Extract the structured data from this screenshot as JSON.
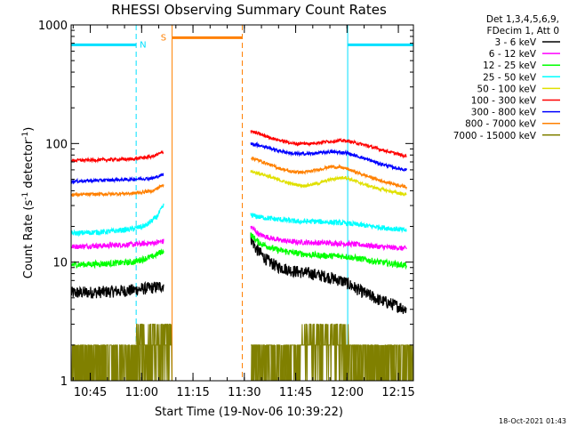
{
  "chart_data": {
    "type": "line",
    "title": "RHESSI Observing Summary Count Rates",
    "xlabel": "Start Time (19-Nov-06 10:39:22)",
    "ylabel_parts": [
      "Count Rate (s",
      "-1",
      " detector",
      "-1",
      ")"
    ],
    "yscale": "log",
    "ylim": [
      1,
      1000
    ],
    "y_ticks": [
      {
        "value": 1,
        "label": "1"
      },
      {
        "value": 10,
        "label": "10"
      },
      {
        "value": 100,
        "label": "100"
      },
      {
        "value": 1000,
        "label": "1000"
      }
    ],
    "xlim_min": [
      0,
      100
    ],
    "x_ticks": [
      {
        "min": 5.6,
        "label": "10:45"
      },
      {
        "min": 20.6,
        "label": "11:00"
      },
      {
        "min": 35.6,
        "label": "11:15"
      },
      {
        "min": 50.6,
        "label": "11:30"
      },
      {
        "min": 65.6,
        "label": "11:45"
      },
      {
        "min": 80.6,
        "label": "12:00"
      },
      {
        "min": 95.6,
        "label": "12:15"
      }
    ],
    "legend_header": [
      "Det 1,3,4,5,6,9,",
      "FDecim 1, Att 0"
    ],
    "timestamp": "18-Oct-2021 01:43",
    "markers": [
      {
        "label": "N",
        "color": "#00e0ff",
        "x_start": 0,
        "x_end": 19,
        "y_value": 680,
        "label_pos": 21
      },
      {
        "label": "S",
        "color": "#ff8000",
        "x_start": 29.5,
        "x_end": 50,
        "y_value": 780,
        "label_pos": 27
      },
      {
        "label": "",
        "color": "#00e0ff",
        "x_start": 80.8,
        "x_end": 100,
        "y_value": 680,
        "label_pos": 0
      }
    ],
    "boundaries": [
      {
        "x": 19,
        "color": "#00e0ff",
        "dashed": true
      },
      {
        "x": 29.5,
        "color": "#ff8000",
        "dashed": false
      },
      {
        "x": 50,
        "color": "#ff8000",
        "dashed": true
      },
      {
        "x": 80.8,
        "color": "#00e0ff",
        "dashed": false
      },
      {
        "x": 100,
        "color": "#00e0ff",
        "dashed": true
      }
    ],
    "gap": [
      29.5,
      52.5
    ],
    "series": [
      {
        "name": "3 - 6 keV",
        "color": "#000000",
        "noise": 0.12,
        "points": [
          [
            0,
            5.5
          ],
          [
            10,
            5.6
          ],
          [
            18,
            5.8
          ],
          [
            24,
            6.1
          ],
          [
            27,
            6.3
          ],
          [
            52.5,
            16
          ],
          [
            54,
            13
          ],
          [
            57,
            10.5
          ],
          [
            60,
            9.2
          ],
          [
            65,
            8.4
          ],
          [
            70,
            8
          ],
          [
            75,
            7.5
          ],
          [
            80,
            6.8
          ],
          [
            85,
            5.6
          ],
          [
            90,
            4.8
          ],
          [
            95,
            4.3
          ],
          [
            98,
            4
          ]
        ]
      },
      {
        "name": "6 - 12 keV",
        "color": "#ff00ff",
        "noise": 0.05,
        "points": [
          [
            0,
            13.5
          ],
          [
            10,
            13.8
          ],
          [
            18,
            14.1
          ],
          [
            24,
            14.5
          ],
          [
            27,
            15
          ],
          [
            52.5,
            20
          ],
          [
            55,
            17
          ],
          [
            60,
            15.5
          ],
          [
            65,
            14.8
          ],
          [
            70,
            14.6
          ],
          [
            75,
            14.5
          ],
          [
            80,
            14.3
          ],
          [
            85,
            14
          ],
          [
            90,
            13.5
          ],
          [
            95,
            13.2
          ],
          [
            98,
            13
          ]
        ]
      },
      {
        "name": "12 - 25 keV",
        "color": "#00ff00",
        "noise": 0.06,
        "points": [
          [
            0,
            9.5
          ],
          [
            10,
            9.7
          ],
          [
            18,
            10
          ],
          [
            24,
            11.2
          ],
          [
            27,
            12.5
          ],
          [
            52.5,
            17
          ],
          [
            55,
            14.5
          ],
          [
            60,
            12.7
          ],
          [
            65,
            12
          ],
          [
            70,
            11.5
          ],
          [
            75,
            11.3
          ],
          [
            80,
            11.2
          ],
          [
            85,
            10.6
          ],
          [
            90,
            10
          ],
          [
            95,
            9.6
          ],
          [
            98,
            9.4
          ]
        ]
      },
      {
        "name": "25 - 50 keV",
        "color": "#00ffff",
        "noise": 0.05,
        "points": [
          [
            0,
            17.5
          ],
          [
            10,
            18
          ],
          [
            18,
            19
          ],
          [
            22,
            20.5
          ],
          [
            25,
            24
          ],
          [
            27,
            30
          ],
          [
            52.5,
            25
          ],
          [
            55,
            24
          ],
          [
            60,
            23
          ],
          [
            66,
            22
          ],
          [
            72,
            22
          ],
          [
            78,
            21.5
          ],
          [
            82,
            21
          ],
          [
            88,
            20
          ],
          [
            95,
            19
          ],
          [
            98,
            18.5
          ]
        ]
      },
      {
        "name": "50 - 100 keV",
        "color": "#e0e000",
        "noise": 0.03,
        "points": [
          [
            52.5,
            58
          ],
          [
            56,
            55
          ],
          [
            60,
            50
          ],
          [
            64,
            46
          ],
          [
            68,
            44
          ],
          [
            72,
            46
          ],
          [
            76,
            50
          ],
          [
            80,
            52
          ],
          [
            84,
            47
          ],
          [
            88,
            43
          ],
          [
            94,
            39
          ],
          [
            98,
            37
          ]
        ]
      },
      {
        "name": "100 - 300 keV",
        "color": "#ff0000",
        "noise": 0.03,
        "points": [
          [
            0,
            72
          ],
          [
            10,
            73
          ],
          [
            18,
            74
          ],
          [
            24,
            78
          ],
          [
            27,
            85
          ],
          [
            52.5,
            128
          ],
          [
            55,
            120
          ],
          [
            60,
            108
          ],
          [
            65,
            100
          ],
          [
            70,
            100
          ],
          [
            75,
            104
          ],
          [
            80,
            106
          ],
          [
            84,
            100
          ],
          [
            90,
            90
          ],
          [
            95,
            82
          ],
          [
            98,
            78
          ]
        ]
      },
      {
        "name": "300 - 800 keV",
        "color": "#0000ff",
        "noise": 0.03,
        "points": [
          [
            0,
            48
          ],
          [
            10,
            49
          ],
          [
            18,
            50
          ],
          [
            24,
            51
          ],
          [
            27,
            55
          ],
          [
            52.5,
            100
          ],
          [
            56,
            95
          ],
          [
            60,
            88
          ],
          [
            65,
            82
          ],
          [
            70,
            82
          ],
          [
            75,
            85
          ],
          [
            80,
            84
          ],
          [
            85,
            76
          ],
          [
            90,
            68
          ],
          [
            95,
            62
          ],
          [
            98,
            60
          ]
        ]
      },
      {
        "name": "800 - 7000 keV",
        "color": "#ff8000",
        "noise": 0.03,
        "points": [
          [
            0,
            37
          ],
          [
            10,
            37.5
          ],
          [
            18,
            38
          ],
          [
            24,
            40
          ],
          [
            27,
            45
          ],
          [
            52.5,
            76
          ],
          [
            56,
            70
          ],
          [
            60,
            63
          ],
          [
            64,
            58
          ],
          [
            68,
            57
          ],
          [
            72,
            60
          ],
          [
            76,
            64
          ],
          [
            80,
            62
          ],
          [
            85,
            55
          ],
          [
            90,
            49
          ],
          [
            95,
            45
          ],
          [
            98,
            43
          ]
        ]
      },
      {
        "name": "7000 - 15000 keV",
        "color": "#808000",
        "noise": 0,
        "points": [
          [
            0,
            1.5
          ],
          [
            98,
            1.5
          ]
        ]
      }
    ]
  }
}
